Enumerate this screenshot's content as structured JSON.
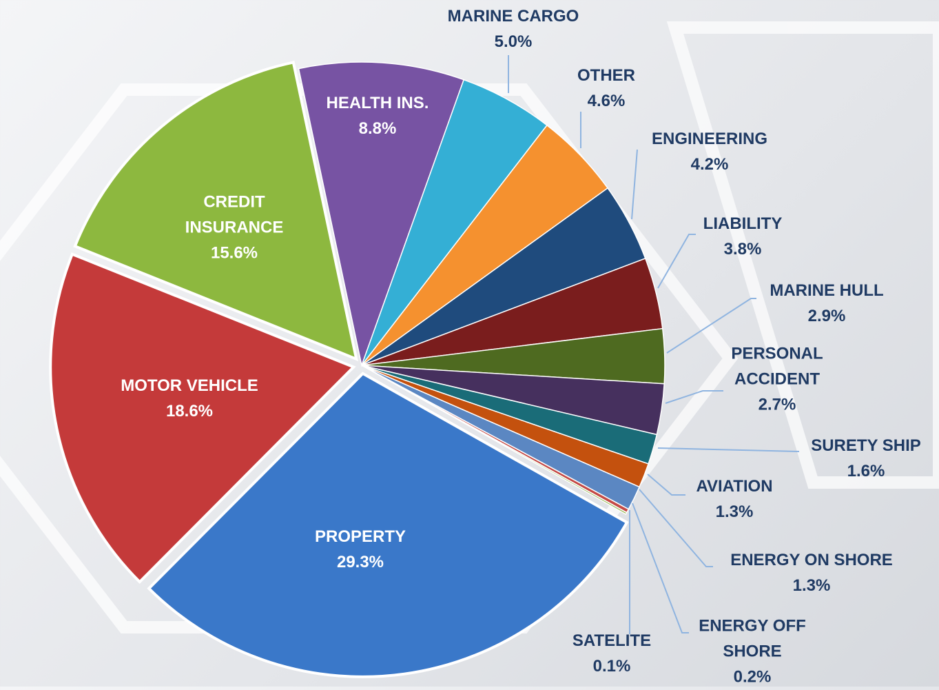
{
  "chart_data": {
    "type": "pie",
    "categories": [
      "HEALTH INS.",
      "MARINE CARGO",
      "OTHER",
      "ENGINEERING",
      "LIABILITY",
      "MARINE HULL",
      "PERSONAL ACCIDENT",
      "SURETY SHIP",
      "AVIATION",
      "ENERGY ON SHORE",
      "ENERGY OFF SHORE",
      "SATELITE",
      "PROPERTY",
      "MOTOR VEHICLE",
      "CREDIT INSURANCE"
    ],
    "values": [
      8.8,
      5.0,
      4.6,
      4.2,
      3.8,
      2.9,
      2.7,
      1.6,
      1.3,
      1.3,
      0.2,
      0.1,
      29.3,
      18.6,
      15.6
    ],
    "value_labels": [
      "8.8%",
      "5.0%",
      "4.6%",
      "4.2%",
      "3.8%",
      "2.9%",
      "2.7%",
      "1.6%",
      "1.3%",
      "1.3%",
      "0.2%",
      "0.1%",
      "29.3%",
      "18.6%",
      "15.6%"
    ],
    "colors": [
      "#7753a3",
      "#34afd5",
      "#f5912f",
      "#1f4b7d",
      "#7a1d1d",
      "#4e6a20",
      "#46305e",
      "#1a6c78",
      "#c4510e",
      "#5b87c2",
      "#c44a45",
      "#98b954",
      "#3a78c9",
      "#c43a3a",
      "#8db83f"
    ]
  }
}
